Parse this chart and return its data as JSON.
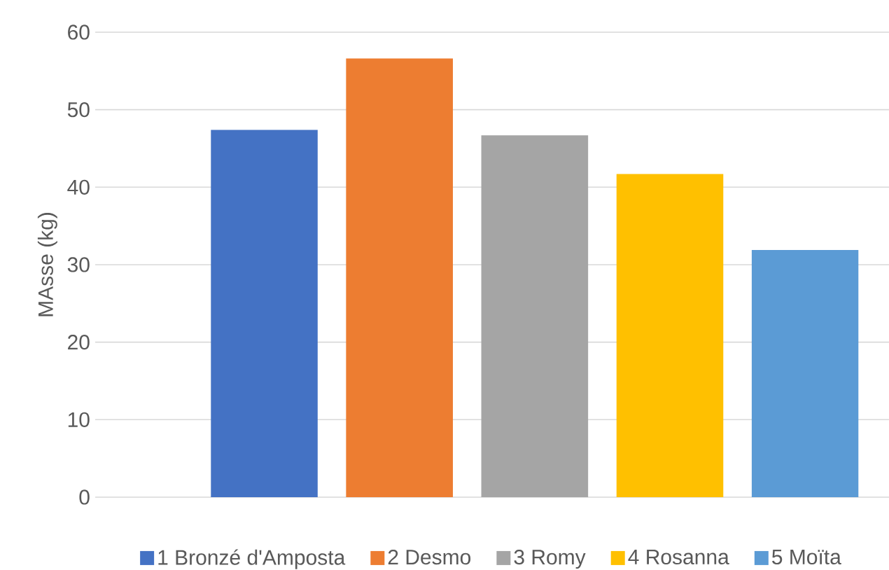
{
  "chart_data": {
    "type": "bar",
    "ylabel": "MAsse (kg)",
    "categories": [
      null
    ],
    "series": [
      {
        "name": "1 Bronzé d'Amposta",
        "color": "#4472c4",
        "values": [
          47.4
        ]
      },
      {
        "name": "2 Desmo",
        "color": "#ed7d31",
        "values": [
          56.6
        ]
      },
      {
        "name": "3 Romy",
        "color": "#a5a5a5",
        "values": [
          46.7
        ]
      },
      {
        "name": "4 Rosanna",
        "color": "#ffc000",
        "values": [
          41.7
        ]
      },
      {
        "name": "5 Moïta",
        "color": "#5b9bd5",
        "values": [
          31.9
        ]
      }
    ],
    "ylim": [
      0,
      60
    ],
    "yticks": [
      0,
      10,
      20,
      30,
      40,
      50,
      60
    ],
    "grid": "y",
    "legend": "bottom"
  }
}
